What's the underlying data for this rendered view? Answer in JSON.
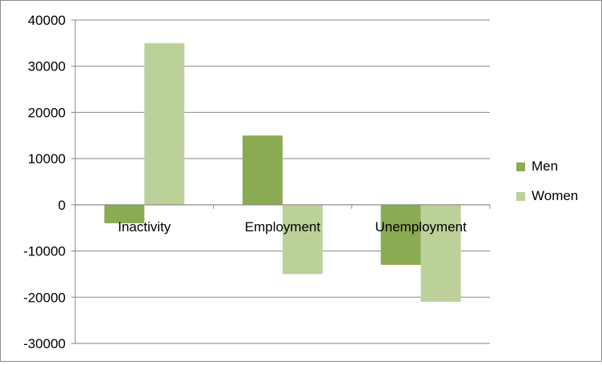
{
  "chart_data": {
    "type": "bar",
    "categories": [
      "Inactivity",
      "Employment",
      "Unemployment"
    ],
    "series": [
      {
        "name": "Men",
        "values": [
          -4000,
          15000,
          -13000
        ],
        "color": "#8aab51"
      },
      {
        "name": "Women",
        "values": [
          35000,
          -15000,
          -21000
        ],
        "color": "#bcd19a"
      }
    ],
    "ylim": [
      -30000,
      40000
    ],
    "yticks": [
      -30000,
      -20000,
      -10000,
      0,
      10000,
      20000,
      30000,
      40000
    ],
    "grid": true,
    "legend_position": "right"
  }
}
